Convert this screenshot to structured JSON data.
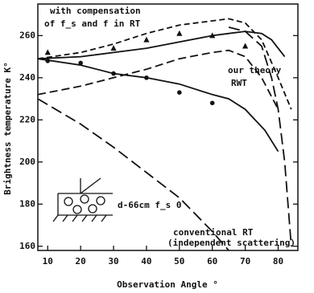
{
  "chart_data": {
    "type": "line",
    "x_label": "Observation Angle °",
    "y_label": "Brightness temperature K°",
    "xlim": [
      7,
      86
    ],
    "ylim": [
      158,
      275
    ],
    "xticks": [
      10,
      20,
      30,
      40,
      50,
      60,
      70,
      80
    ],
    "yticks": [
      160,
      180,
      200,
      220,
      240,
      260
    ],
    "annotations": [
      "with compensation",
      "of f_s and f in RT",
      "our theory",
      "RWT",
      "d-66cm f_s 0",
      "conventional RT",
      "(independent scattering)"
    ],
    "series": [
      {
        "color": "#111",
        "dash": "7 4",
        "x": [
          7,
          20,
          30,
          40,
          50,
          60,
          65,
          70,
          75,
          80,
          84
        ],
        "values": [
          249,
          252,
          256,
          261,
          265,
          267,
          268,
          266,
          258,
          240,
          225
        ]
      },
      {
        "color": "#111",
        "dash": "",
        "x": [
          7,
          20,
          30,
          40,
          50,
          60,
          65,
          70,
          75,
          78,
          82
        ],
        "values": [
          249,
          250,
          252,
          254,
          257,
          260,
          261,
          262,
          261,
          258,
          250
        ]
      },
      {
        "color": "#111",
        "dash": "",
        "x": [
          7,
          20,
          30,
          40,
          50,
          60,
          65,
          70,
          76,
          80
        ],
        "values": [
          249,
          246,
          242,
          240,
          237,
          232,
          230,
          225,
          215,
          205
        ]
      },
      {
        "color": "#111",
        "dash": "10 5",
        "x": [
          7,
          20,
          30,
          40,
          50,
          60,
          65,
          70,
          75,
          80
        ],
        "values": [
          232,
          236,
          240,
          244,
          249,
          252,
          253,
          250,
          240,
          225
        ]
      },
      {
        "color": "#111",
        "dash": "14 6",
        "x": [
          7,
          20,
          30,
          40,
          50,
          55,
          60,
          65
        ],
        "values": [
          230,
          218,
          207,
          195,
          183,
          175,
          167,
          158
        ]
      },
      {
        "color": "#111",
        "dash": "14 6",
        "x": [
          65,
          70,
          75,
          78,
          80,
          82,
          84
        ],
        "values": [
          264,
          262,
          255,
          240,
          225,
          200,
          160
        ]
      },
      {
        "type": "scatter",
        "marker": "triangle",
        "color": "#111",
        "x": [
          10,
          30,
          40,
          50,
          60,
          70
        ],
        "values": [
          252,
          254,
          258,
          261,
          260,
          255
        ]
      },
      {
        "type": "scatter",
        "marker": "circle",
        "color": "#111",
        "x": [
          10,
          20,
          30,
          40,
          50,
          60
        ],
        "values": [
          248,
          247,
          242,
          240,
          233,
          228
        ]
      }
    ]
  }
}
